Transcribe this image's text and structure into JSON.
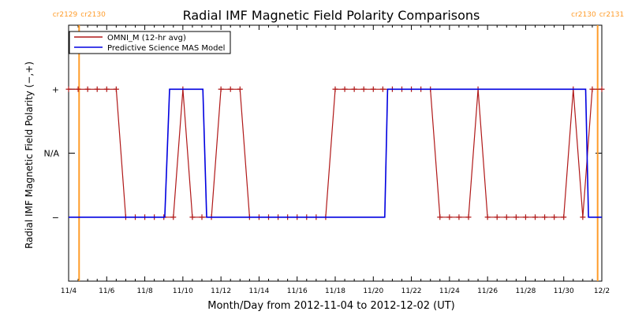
{
  "chart_data": {
    "type": "line",
    "title": "Radial IMF Magnetic Field Polarity Comparisons",
    "xlabel": "Month/Day from 2012-11-04 to 2012-12-02 (UT)",
    "ylabel": "Radial IMF Magnetic Field Polarity (−,+)",
    "x_unit": "days since 2012-11-04 00:00 UT",
    "xlim": [
      0,
      28
    ],
    "x_ticks": [
      {
        "x": 0,
        "label": "11/4"
      },
      {
        "x": 2,
        "label": "11/6"
      },
      {
        "x": 4,
        "label": "11/8"
      },
      {
        "x": 6,
        "label": "11/10"
      },
      {
        "x": 8,
        "label": "11/12"
      },
      {
        "x": 10,
        "label": "11/14"
      },
      {
        "x": 12,
        "label": "11/16"
      },
      {
        "x": 14,
        "label": "11/18"
      },
      {
        "x": 16,
        "label": "11/20"
      },
      {
        "x": 18,
        "label": "11/22"
      },
      {
        "x": 20,
        "label": "11/24"
      },
      {
        "x": 22,
        "label": "11/26"
      },
      {
        "x": 24,
        "label": "11/28"
      },
      {
        "x": 26,
        "label": "11/30"
      },
      {
        "x": 28,
        "label": "12/2"
      }
    ],
    "ylim": [
      -2,
      2
    ],
    "y_ticks": [
      {
        "y": 1,
        "label": "+"
      },
      {
        "y": 0,
        "label": "N/A"
      },
      {
        "y": -1,
        "label": "−"
      }
    ],
    "carrington_rotations": [
      {
        "x": 0.55,
        "label_left": "cr2129",
        "label_right": "cr2130",
        "color": "#ff9c2a"
      },
      {
        "x": 27.78,
        "label_left": "cr2130",
        "label_right": "cr2131",
        "color": "#ff9c2a"
      }
    ],
    "legend": {
      "placement": "top-left"
    },
    "series": [
      {
        "name": "OMNI_M (12-hr avg)",
        "color": "#b01818",
        "marker": "plus",
        "x": [
          0.0,
          0.5,
          1.0,
          1.5,
          2.0,
          2.5,
          3.0,
          3.5,
          4.0,
          4.5,
          5.0,
          5.5,
          6.0,
          6.5,
          7.0,
          7.5,
          8.0,
          8.5,
          9.0,
          9.5,
          10.0,
          10.5,
          11.0,
          11.5,
          12.0,
          12.5,
          13.0,
          13.5,
          14.0,
          14.5,
          15.0,
          15.5,
          16.0,
          16.5,
          17.0,
          17.5,
          18.0,
          18.5,
          19.0,
          19.5,
          20.0,
          20.5,
          21.0,
          21.5,
          22.0,
          22.5,
          23.0,
          23.5,
          24.0,
          24.5,
          25.0,
          25.5,
          26.0,
          26.5,
          27.0,
          27.5,
          28.0
        ],
        "y": [
          1,
          1,
          1,
          1,
          1,
          1,
          -1,
          -1,
          -1,
          -1,
          -1,
          -1,
          1,
          -1,
          -1,
          -1,
          1,
          1,
          1,
          -1,
          -1,
          -1,
          -1,
          -1,
          -1,
          -1,
          -1,
          -1,
          1,
          1,
          1,
          1,
          1,
          1,
          1,
          1,
          1,
          1,
          1,
          -1,
          -1,
          -1,
          -1,
          1,
          -1,
          -1,
          -1,
          -1,
          -1,
          -1,
          -1,
          -1,
          -1,
          1,
          -1,
          1,
          1
        ]
      },
      {
        "name": "Predictive Science MAS Model",
        "color": "#0000e0",
        "marker": "none",
        "x": [
          0.0,
          5.05,
          5.3,
          7.05,
          7.25,
          16.6,
          16.75,
          27.15,
          27.3,
          28.0
        ],
        "y": [
          -1,
          -1,
          1,
          1,
          -1,
          -1,
          1,
          1,
          -1,
          -1
        ]
      }
    ]
  }
}
